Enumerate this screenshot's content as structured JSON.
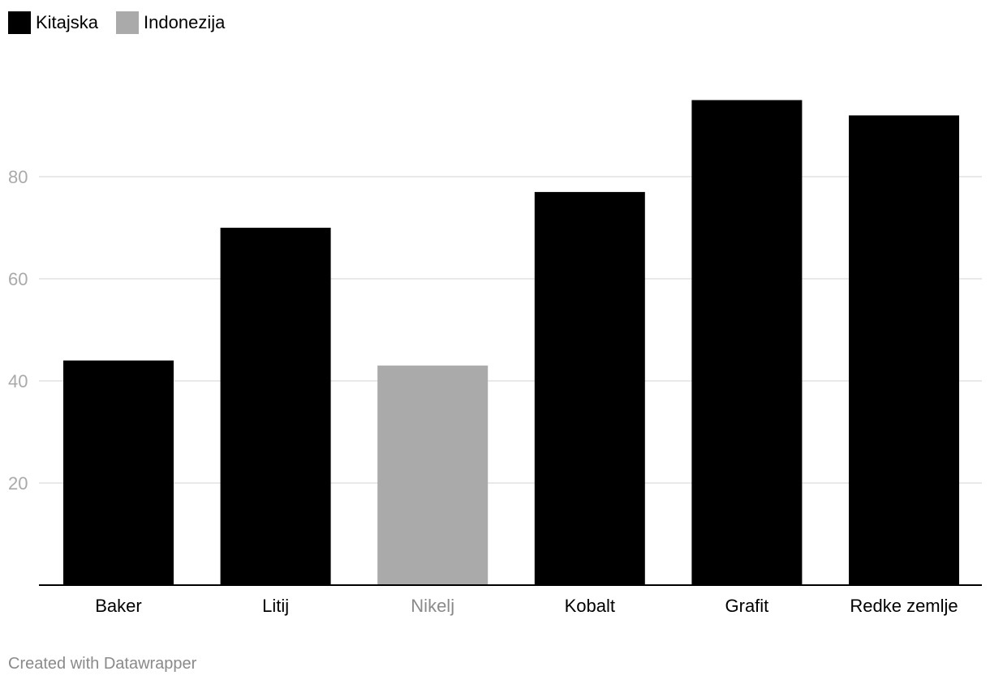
{
  "legend": [
    {
      "label": "Kitajska",
      "color": "#000000"
    },
    {
      "label": "Indonezija",
      "color": "#aaaaaa"
    }
  ],
  "chart_data": {
    "type": "bar",
    "categories": [
      "Baker",
      "Litij",
      "Nikelj",
      "Kobalt",
      "Grafit",
      "Redke zemlje"
    ],
    "values": [
      44,
      70,
      43,
      77,
      95,
      92
    ],
    "series_of_category": [
      "Kitajska",
      "Kitajska",
      "Indonezija",
      "Kitajska",
      "Kitajska",
      "Kitajska"
    ],
    "yticks": [
      20,
      40,
      60,
      80
    ],
    "ylim": [
      0,
      100
    ],
    "grid": true,
    "legend_position": "top-left",
    "title": "",
    "xlabel": "",
    "ylabel": ""
  },
  "footer": "Created with Datawrapper"
}
